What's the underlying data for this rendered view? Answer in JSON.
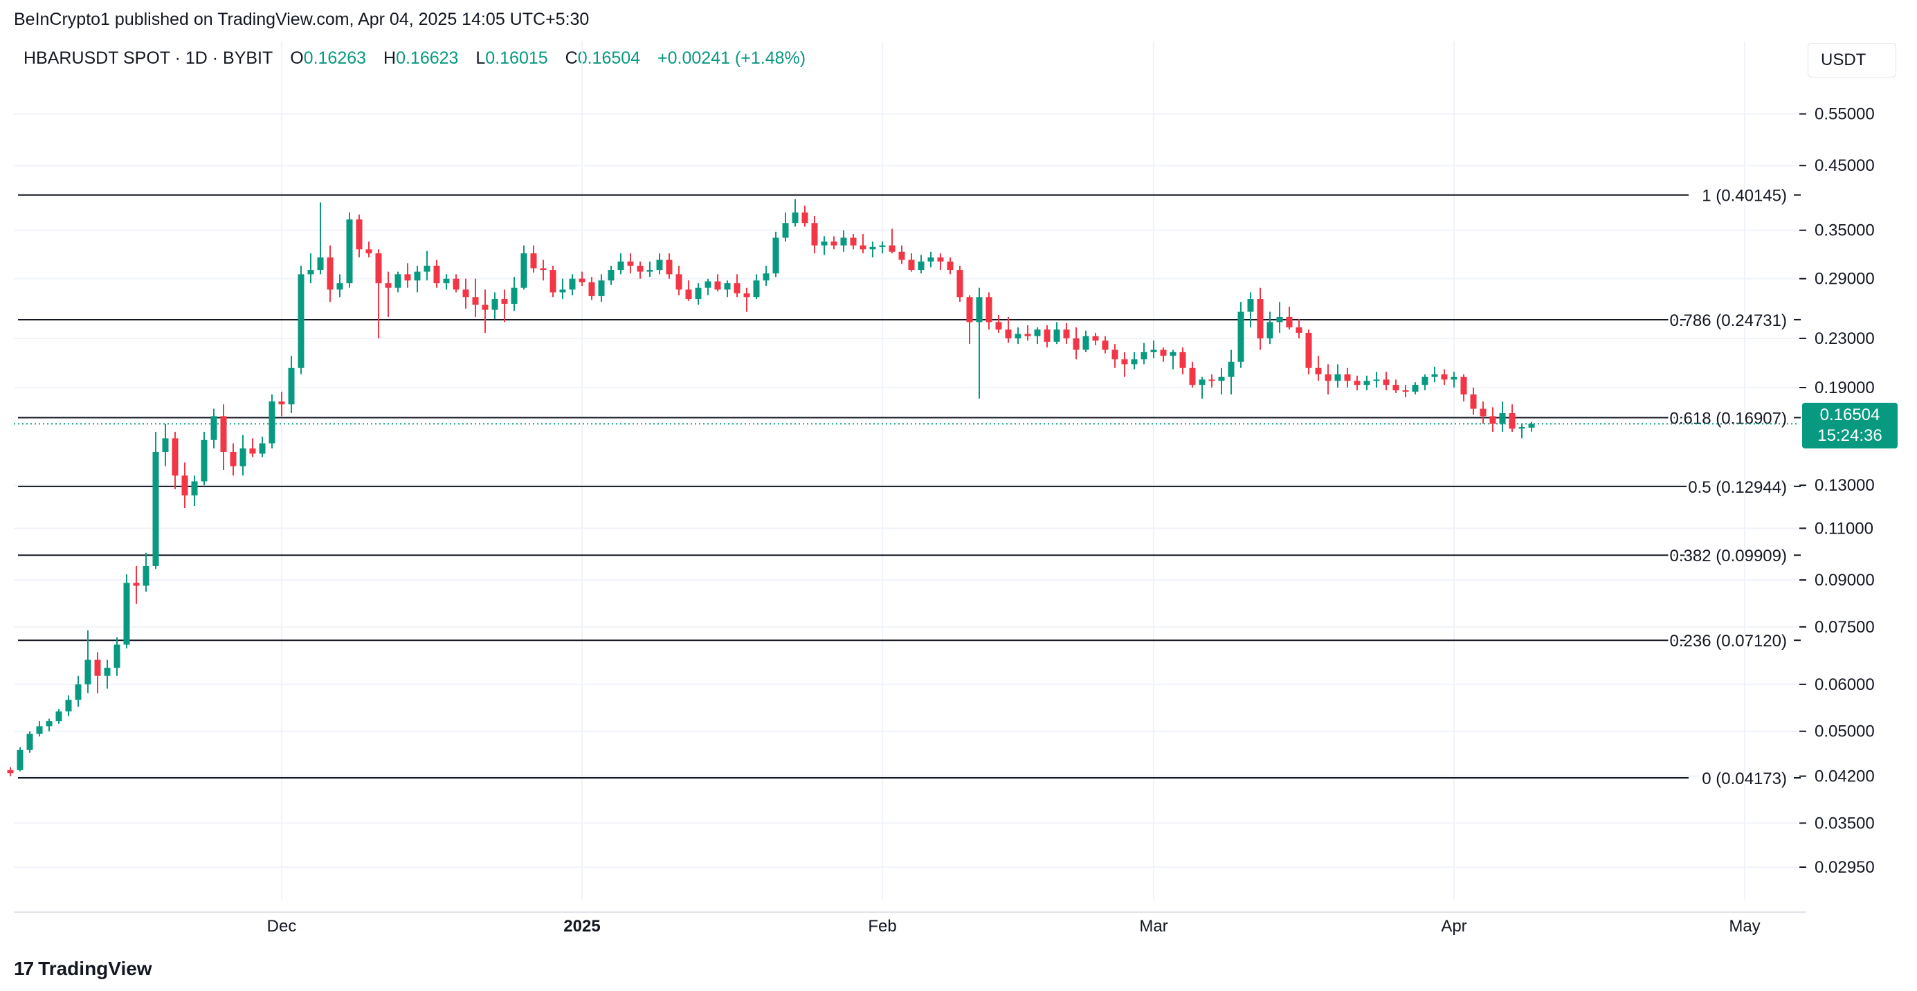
{
  "header": {
    "publisher": "BeInCrypto1 published on TradingView.com, Apr 04, 2025 14:05 UTC+5:30",
    "symbol": "HBARUSDT SPOT · 1D · BYBIT",
    "ohlc": {
      "o_label": "O",
      "o_value": "0.16263",
      "h_label": "H",
      "h_value": "0.16623",
      "l_label": "L",
      "l_value": "0.16015",
      "c_label": "C",
      "c_value": "0.16504",
      "change": "+0.00241 (+1.48%)"
    },
    "currency": "USDT"
  },
  "last_price": {
    "value": "0.16504",
    "countdown": "15:24:36"
  },
  "footer": {
    "brand": "TradingView",
    "logo_text": "17"
  },
  "colors": {
    "up": "#089981",
    "down": "#f23645",
    "grid": "#f0f3fa",
    "line": "#131722"
  },
  "chart_data": {
    "type": "candlestick",
    "y_scale": "log",
    "y_ticks": [
      "0.55000",
      "0.45000",
      "0.35000",
      "0.29000",
      "0.23000",
      "0.19000",
      "0.13000",
      "0.11000",
      "0.09000",
      "0.07500",
      "0.06000",
      "0.05000",
      "0.04200",
      "0.03500",
      "0.02950"
    ],
    "x_ticks": [
      {
        "label": "Dec",
        "date": "2024-12-01",
        "bold": false
      },
      {
        "label": "2025",
        "date": "2025-01-01",
        "bold": true
      },
      {
        "label": "Feb",
        "date": "2025-02-01",
        "bold": false
      },
      {
        "label": "Mar",
        "date": "2025-03-01",
        "bold": false
      },
      {
        "label": "Apr",
        "date": "2025-04-01",
        "bold": false
      },
      {
        "label": "May",
        "date": "2025-05-01",
        "bold": false
      }
    ],
    "fib_levels": [
      {
        "label": "1 (0.40145)",
        "value": 0.40145
      },
      {
        "label": "0.786 (0.24731)",
        "value": 0.24731
      },
      {
        "label": "0.618 (0.16907)",
        "value": 0.16907
      },
      {
        "label": "0.5 (0.12944)",
        "value": 0.12944
      },
      {
        "label": "0.382 (0.09909)",
        "value": 0.09909
      },
      {
        "label": "0.236 (0.07120)",
        "value": 0.0712
      },
      {
        "label": "0 (0.04173)",
        "value": 0.04173
      }
    ],
    "last_close": 0.16504,
    "candles": [
      [
        "2024-11-03",
        0.043,
        0.0435,
        0.042,
        0.0425
      ],
      [
        "2024-11-04",
        0.043,
        0.047,
        0.0428,
        0.0465
      ],
      [
        "2024-11-05",
        0.0465,
        0.05,
        0.046,
        0.0495
      ],
      [
        "2024-11-06",
        0.0495,
        0.052,
        0.049,
        0.051
      ],
      [
        "2024-11-07",
        0.051,
        0.0525,
        0.05,
        0.052
      ],
      [
        "2024-11-08",
        0.052,
        0.0545,
        0.0515,
        0.054
      ],
      [
        "2024-11-09",
        0.054,
        0.0575,
        0.053,
        0.0565
      ],
      [
        "2024-11-10",
        0.0565,
        0.062,
        0.055,
        0.06
      ],
      [
        "2024-11-11",
        0.06,
        0.074,
        0.058,
        0.066
      ],
      [
        "2024-11-12",
        0.066,
        0.068,
        0.058,
        0.062
      ],
      [
        "2024-11-13",
        0.062,
        0.066,
        0.059,
        0.064
      ],
      [
        "2024-11-14",
        0.064,
        0.072,
        0.062,
        0.07
      ],
      [
        "2024-11-15",
        0.07,
        0.092,
        0.069,
        0.089
      ],
      [
        "2024-11-16",
        0.089,
        0.095,
        0.082,
        0.088
      ],
      [
        "2024-11-17",
        0.088,
        0.1,
        0.086,
        0.095
      ],
      [
        "2024-11-18",
        0.095,
        0.16,
        0.094,
        0.148
      ],
      [
        "2024-11-19",
        0.148,
        0.165,
        0.14,
        0.156
      ],
      [
        "2024-11-20",
        0.156,
        0.16,
        0.128,
        0.135
      ],
      [
        "2024-11-21",
        0.135,
        0.142,
        0.119,
        0.125
      ],
      [
        "2024-11-22",
        0.125,
        0.135,
        0.12,
        0.132
      ],
      [
        "2024-11-23",
        0.132,
        0.16,
        0.13,
        0.155
      ],
      [
        "2024-11-24",
        0.155,
        0.175,
        0.15,
        0.17
      ],
      [
        "2024-11-25",
        0.17,
        0.178,
        0.138,
        0.148
      ],
      [
        "2024-11-26",
        0.148,
        0.153,
        0.135,
        0.14
      ],
      [
        "2024-11-27",
        0.14,
        0.158,
        0.135,
        0.15
      ],
      [
        "2024-11-28",
        0.15,
        0.156,
        0.145,
        0.147
      ],
      [
        "2024-11-29",
        0.147,
        0.157,
        0.145,
        0.153
      ],
      [
        "2024-11-30",
        0.153,
        0.185,
        0.15,
        0.18
      ],
      [
        "2024-12-01",
        0.18,
        0.187,
        0.17,
        0.178
      ],
      [
        "2024-12-02",
        0.178,
        0.215,
        0.172,
        0.205
      ],
      [
        "2024-12-03",
        0.205,
        0.305,
        0.2,
        0.295
      ],
      [
        "2024-12-04",
        0.295,
        0.32,
        0.285,
        0.3
      ],
      [
        "2024-12-05",
        0.3,
        0.39,
        0.295,
        0.315
      ],
      [
        "2024-12-06",
        0.315,
        0.33,
        0.265,
        0.278
      ],
      [
        "2024-12-07",
        0.278,
        0.295,
        0.27,
        0.285
      ],
      [
        "2024-12-08",
        0.285,
        0.375,
        0.28,
        0.365
      ],
      [
        "2024-12-09",
        0.365,
        0.372,
        0.315,
        0.325
      ],
      [
        "2024-12-10",
        0.325,
        0.335,
        0.315,
        0.32
      ],
      [
        "2024-12-11",
        0.32,
        0.325,
        0.23,
        0.285
      ],
      [
        "2024-12-12",
        0.285,
        0.298,
        0.25,
        0.28
      ],
      [
        "2024-12-13",
        0.28,
        0.298,
        0.275,
        0.295
      ],
      [
        "2024-12-14",
        0.295,
        0.308,
        0.28,
        0.288
      ],
      [
        "2024-12-15",
        0.288,
        0.305,
        0.275,
        0.298
      ],
      [
        "2024-12-16",
        0.298,
        0.323,
        0.288,
        0.305
      ],
      [
        "2024-12-17",
        0.305,
        0.312,
        0.28,
        0.285
      ],
      [
        "2024-12-18",
        0.285,
        0.295,
        0.278,
        0.29
      ],
      [
        "2024-12-19",
        0.29,
        0.295,
        0.275,
        0.278
      ],
      [
        "2024-12-20",
        0.278,
        0.29,
        0.258,
        0.27
      ],
      [
        "2024-12-21",
        0.27,
        0.29,
        0.25,
        0.262
      ],
      [
        "2024-12-22",
        0.262,
        0.278,
        0.235,
        0.257
      ],
      [
        "2024-12-23",
        0.257,
        0.275,
        0.248,
        0.268
      ],
      [
        "2024-12-24",
        0.268,
        0.278,
        0.245,
        0.263
      ],
      [
        "2024-12-25",
        0.263,
        0.292,
        0.256,
        0.28
      ],
      [
        "2024-12-26",
        0.28,
        0.33,
        0.278,
        0.32
      ],
      [
        "2024-12-27",
        0.32,
        0.33,
        0.297,
        0.302
      ],
      [
        "2024-12-28",
        0.302,
        0.312,
        0.288,
        0.3
      ],
      [
        "2024-12-29",
        0.3,
        0.305,
        0.27,
        0.275
      ],
      [
        "2024-12-30",
        0.275,
        0.29,
        0.268,
        0.278
      ],
      [
        "2024-12-31",
        0.278,
        0.295,
        0.272,
        0.29
      ],
      [
        "2025-01-01",
        0.29,
        0.298,
        0.282,
        0.286
      ],
      [
        "2025-01-02",
        0.286,
        0.292,
        0.267,
        0.271
      ],
      [
        "2025-01-03",
        0.271,
        0.295,
        0.265,
        0.288
      ],
      [
        "2025-01-04",
        0.288,
        0.305,
        0.283,
        0.3
      ],
      [
        "2025-01-05",
        0.3,
        0.32,
        0.295,
        0.31
      ],
      [
        "2025-01-06",
        0.31,
        0.32,
        0.296,
        0.305
      ],
      [
        "2025-01-07",
        0.305,
        0.31,
        0.29,
        0.298
      ],
      [
        "2025-01-08",
        0.298,
        0.31,
        0.292,
        0.3
      ],
      [
        "2025-01-09",
        0.3,
        0.32,
        0.295,
        0.312
      ],
      [
        "2025-01-10",
        0.312,
        0.32,
        0.29,
        0.295
      ],
      [
        "2025-01-11",
        0.295,
        0.305,
        0.272,
        0.278
      ],
      [
        "2025-01-12",
        0.278,
        0.288,
        0.266,
        0.268
      ],
      [
        "2025-01-13",
        0.268,
        0.285,
        0.262,
        0.28
      ],
      [
        "2025-01-14",
        0.28,
        0.29,
        0.272,
        0.287
      ],
      [
        "2025-01-15",
        0.287,
        0.295,
        0.276,
        0.278
      ],
      [
        "2025-01-16",
        0.278,
        0.288,
        0.27,
        0.285
      ],
      [
        "2025-01-17",
        0.285,
        0.295,
        0.27,
        0.274
      ],
      [
        "2025-01-18",
        0.274,
        0.28,
        0.255,
        0.27
      ],
      [
        "2025-01-19",
        0.27,
        0.295,
        0.268,
        0.288
      ],
      [
        "2025-01-20",
        0.288,
        0.305,
        0.282,
        0.296
      ],
      [
        "2025-01-21",
        0.296,
        0.348,
        0.292,
        0.34
      ],
      [
        "2025-01-22",
        0.34,
        0.375,
        0.335,
        0.36
      ],
      [
        "2025-01-23",
        0.36,
        0.395,
        0.355,
        0.375
      ],
      [
        "2025-01-24",
        0.375,
        0.385,
        0.355,
        0.36
      ],
      [
        "2025-01-25",
        0.36,
        0.37,
        0.32,
        0.33
      ],
      [
        "2025-01-26",
        0.33,
        0.342,
        0.318,
        0.335
      ],
      [
        "2025-01-27",
        0.335,
        0.342,
        0.325,
        0.33
      ],
      [
        "2025-01-28",
        0.33,
        0.35,
        0.322,
        0.34
      ],
      [
        "2025-01-29",
        0.34,
        0.345,
        0.325,
        0.33
      ],
      [
        "2025-01-30",
        0.33,
        0.345,
        0.32,
        0.325
      ],
      [
        "2025-01-31",
        0.325,
        0.335,
        0.315,
        0.328
      ],
      [
        "2025-02-01",
        0.328,
        0.335,
        0.32,
        0.33
      ],
      [
        "2025-02-02",
        0.33,
        0.352,
        0.32,
        0.322
      ],
      [
        "2025-02-03",
        0.322,
        0.33,
        0.307,
        0.312
      ],
      [
        "2025-02-04",
        0.312,
        0.32,
        0.298,
        0.3
      ],
      [
        "2025-02-05",
        0.3,
        0.318,
        0.296,
        0.31
      ],
      [
        "2025-02-06",
        0.31,
        0.322,
        0.303,
        0.315
      ],
      [
        "2025-02-07",
        0.315,
        0.32,
        0.3,
        0.31
      ],
      [
        "2025-02-08",
        0.31,
        0.315,
        0.295,
        0.3
      ],
      [
        "2025-02-09",
        0.3,
        0.305,
        0.265,
        0.27
      ],
      [
        "2025-02-10",
        0.27,
        0.272,
        0.225,
        0.245
      ],
      [
        "2025-02-11",
        0.245,
        0.28,
        0.182,
        0.27
      ],
      [
        "2025-02-12",
        0.27,
        0.275,
        0.238,
        0.245
      ],
      [
        "2025-02-13",
        0.245,
        0.252,
        0.235,
        0.238
      ],
      [
        "2025-02-14",
        0.238,
        0.25,
        0.226,
        0.23
      ],
      [
        "2025-02-15",
        0.23,
        0.24,
        0.225,
        0.234
      ],
      [
        "2025-02-16",
        0.234,
        0.242,
        0.228,
        0.232
      ],
      [
        "2025-02-17",
        0.232,
        0.24,
        0.225,
        0.238
      ],
      [
        "2025-02-18",
        0.238,
        0.242,
        0.222,
        0.227
      ],
      [
        "2025-02-19",
        0.227,
        0.245,
        0.225,
        0.238
      ],
      [
        "2025-02-20",
        0.238,
        0.244,
        0.225,
        0.23
      ],
      [
        "2025-02-21",
        0.23,
        0.24,
        0.212,
        0.22
      ],
      [
        "2025-02-22",
        0.22,
        0.237,
        0.218,
        0.232
      ],
      [
        "2025-02-23",
        0.232,
        0.235,
        0.224,
        0.228
      ],
      [
        "2025-02-24",
        0.228,
        0.232,
        0.217,
        0.22
      ],
      [
        "2025-02-25",
        0.22,
        0.225,
        0.205,
        0.212
      ],
      [
        "2025-02-26",
        0.212,
        0.218,
        0.198,
        0.208
      ],
      [
        "2025-02-27",
        0.208,
        0.218,
        0.204,
        0.212
      ],
      [
        "2025-02-28",
        0.212,
        0.226,
        0.208,
        0.218
      ],
      [
        "2025-03-01",
        0.218,
        0.228,
        0.213,
        0.22
      ],
      [
        "2025-03-02",
        0.22,
        0.222,
        0.21,
        0.215
      ],
      [
        "2025-03-03",
        0.215,
        0.22,
        0.204,
        0.218
      ],
      [
        "2025-03-04",
        0.218,
        0.222,
        0.2,
        0.205
      ],
      [
        "2025-03-05",
        0.205,
        0.21,
        0.19,
        0.192
      ],
      [
        "2025-03-06",
        0.192,
        0.198,
        0.182,
        0.196
      ],
      [
        "2025-03-07",
        0.196,
        0.2,
        0.19,
        0.195
      ],
      [
        "2025-03-08",
        0.195,
        0.205,
        0.185,
        0.198
      ],
      [
        "2025-03-09",
        0.198,
        0.22,
        0.185,
        0.21
      ],
      [
        "2025-03-10",
        0.21,
        0.265,
        0.205,
        0.255
      ],
      [
        "2025-03-11",
        0.255,
        0.275,
        0.24,
        0.268
      ],
      [
        "2025-03-12",
        0.268,
        0.28,
        0.22,
        0.23
      ],
      [
        "2025-03-13",
        0.23,
        0.255,
        0.225,
        0.245
      ],
      [
        "2025-03-14",
        0.245,
        0.265,
        0.235,
        0.25
      ],
      [
        "2025-03-15",
        0.25,
        0.26,
        0.238,
        0.24
      ],
      [
        "2025-03-16",
        0.24,
        0.248,
        0.23,
        0.235
      ],
      [
        "2025-03-17",
        0.235,
        0.238,
        0.2,
        0.205
      ],
      [
        "2025-03-18",
        0.205,
        0.215,
        0.195,
        0.2
      ],
      [
        "2025-03-19",
        0.2,
        0.208,
        0.185,
        0.195
      ],
      [
        "2025-03-20",
        0.195,
        0.208,
        0.19,
        0.2
      ],
      [
        "2025-03-21",
        0.2,
        0.205,
        0.19,
        0.195
      ],
      [
        "2025-03-22",
        0.195,
        0.199,
        0.188,
        0.192
      ],
      [
        "2025-03-23",
        0.192,
        0.199,
        0.188,
        0.195
      ],
      [
        "2025-03-24",
        0.195,
        0.202,
        0.19,
        0.196
      ],
      [
        "2025-03-25",
        0.196,
        0.202,
        0.188,
        0.192
      ],
      [
        "2025-03-26",
        0.192,
        0.196,
        0.186,
        0.188
      ],
      [
        "2025-03-27",
        0.188,
        0.192,
        0.183,
        0.187
      ],
      [
        "2025-03-28",
        0.187,
        0.194,
        0.185,
        0.192
      ],
      [
        "2025-03-29",
        0.192,
        0.2,
        0.188,
        0.198
      ],
      [
        "2025-03-30",
        0.198,
        0.206,
        0.194,
        0.2
      ],
      [
        "2025-03-31",
        0.2,
        0.204,
        0.192,
        0.196
      ],
      [
        "2025-04-01",
        0.196,
        0.202,
        0.19,
        0.198
      ],
      [
        "2025-04-02",
        0.198,
        0.2,
        0.18,
        0.185
      ],
      [
        "2025-04-03",
        0.185,
        0.19,
        0.171,
        0.175
      ],
      [
        "2025-04-04",
        0.175,
        0.18,
        0.165,
        0.17
      ],
      [
        "2025-04-05",
        0.17,
        0.176,
        0.16,
        0.165
      ],
      [
        "2025-04-06",
        0.165,
        0.18,
        0.16,
        0.172
      ],
      [
        "2025-04-07",
        0.172,
        0.178,
        0.16,
        0.162
      ],
      [
        "2025-04-08",
        0.162,
        0.165,
        0.156,
        0.163
      ],
      [
        "2025-04-09",
        0.1626,
        0.1662,
        0.1601,
        0.165
      ]
    ]
  }
}
